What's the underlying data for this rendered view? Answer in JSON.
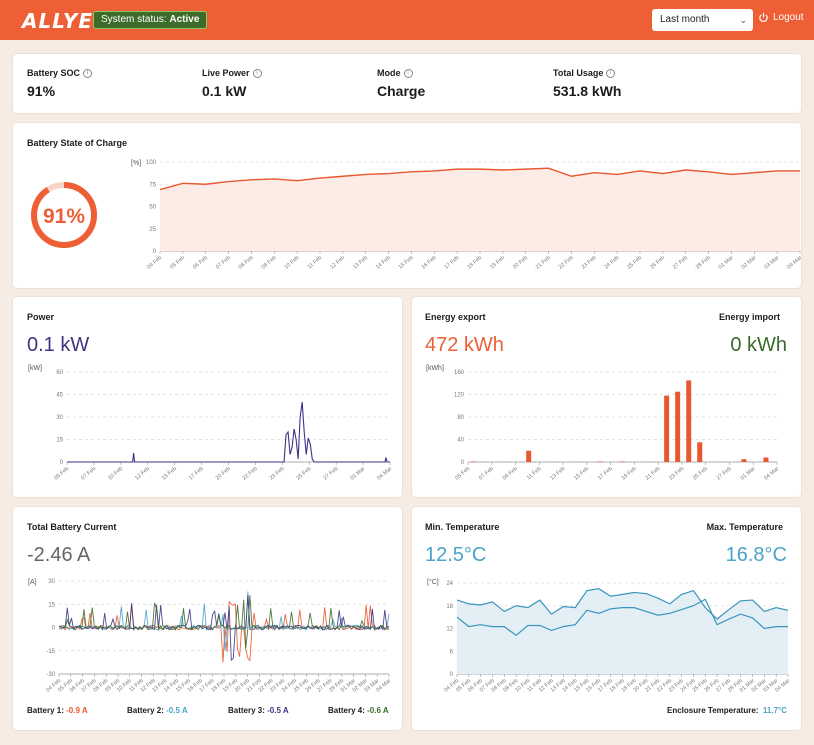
{
  "header": {
    "logo": "ALLYE",
    "status_label": "System status:",
    "status_value": "Active",
    "period": "Last month",
    "logout": "Logout"
  },
  "kpis": [
    {
      "label": "Battery SOC",
      "value": "91%"
    },
    {
      "label": "Live Power",
      "value": "0.1 kW"
    },
    {
      "label": "Mode",
      "value": "Charge"
    },
    {
      "label": "Total Usage",
      "value": "531.8 kWh"
    }
  ],
  "soc": {
    "title": "Battery State of Charge",
    "gauge_label": "91%",
    "gauge_value": 91,
    "unit": "[%]"
  },
  "power": {
    "title": "Power",
    "value": "0.1 kW",
    "unit": "[kW]"
  },
  "energy": {
    "export_title": "Energy export",
    "export_value": "472 kWh",
    "import_title": "Energy import",
    "import_value": "0 kWh",
    "unit": "[kWh]"
  },
  "current": {
    "title": "Total Battery Current",
    "value": "-2.46 A",
    "unit": "[A]",
    "batteries": [
      {
        "label": "Battery 1:",
        "value": "-0.9 A",
        "color": "#e8572e"
      },
      {
        "label": "Battery 2:",
        "value": "-0.5 A",
        "color": "#4aa3c9"
      },
      {
        "label": "Battery 3:",
        "value": "-0.5 A",
        "color": "#3b3486"
      },
      {
        "label": "Battery 4:",
        "value": "-0.6 A",
        "color": "#3d6b2a"
      }
    ]
  },
  "temperature": {
    "min_title": "Min. Temperature",
    "min_value": "12.5°C",
    "max_title": "Max. Temperature",
    "max_value": "16.8°C",
    "unit": "[°C]",
    "enclosure_label": "Enclosure Temperature:",
    "enclosure_value": "11.7°C"
  },
  "colors": {
    "accent": "#ee5f35",
    "power": "#3b3486",
    "import": "#3d6b2a",
    "temp": "#4aa3c9"
  },
  "chart_data": [
    {
      "type": "area",
      "title": "Battery State of Charge",
      "ylabel": "[%]",
      "ylim": [
        0,
        100
      ],
      "yticks": [
        0,
        25,
        50,
        75,
        100
      ],
      "grid": true,
      "x": [
        "04 Feb",
        "05 Feb",
        "06 Feb",
        "07 Feb",
        "08 Feb",
        "09 Feb",
        "10 Feb",
        "11 Feb",
        "12 Feb",
        "13 Feb",
        "14 Feb",
        "15 Feb",
        "16 Feb",
        "17 Feb",
        "18 Feb",
        "19 Feb",
        "20 Feb",
        "21 Feb",
        "22 Feb",
        "23 Feb",
        "24 Feb",
        "25 Feb",
        "26 Feb",
        "27 Feb",
        "28 Feb",
        "01 Mar",
        "02 Mar",
        "03 Mar",
        "04 Mar"
      ],
      "series": [
        {
          "values": [
            69,
            76,
            75,
            78,
            80,
            81,
            79,
            82,
            84,
            86,
            87,
            89,
            90,
            92,
            92,
            91,
            92,
            93,
            84,
            88,
            86,
            90,
            87,
            91,
            89,
            86,
            88,
            90,
            90
          ]
        }
      ]
    },
    {
      "type": "line",
      "title": "Power",
      "ylabel": "[kW]",
      "ylim": [
        0,
        60
      ],
      "yticks": [
        0,
        15,
        30,
        45,
        60
      ],
      "grid": true,
      "x": [
        "05 Feb",
        "07 Feb",
        "10 Feb",
        "12 Feb",
        "15 Feb",
        "17 Feb",
        "20 Feb",
        "22 Feb",
        "23 Feb",
        "25 Feb",
        "27 Feb",
        "01 Mar",
        "04 Mar"
      ],
      "series": [
        {
          "values": [
            [
              0,
              0
            ],
            [
              6.5,
              0
            ],
            [
              6.6,
              6
            ],
            [
              6.7,
              0
            ],
            [
              21.5,
              0
            ],
            [
              21.7,
              18
            ],
            [
              21.9,
              20
            ],
            [
              22.1,
              5
            ],
            [
              22.3,
              10
            ],
            [
              22.5,
              22
            ],
            [
              22.7,
              15
            ],
            [
              22.9,
              2
            ],
            [
              23.1,
              30
            ],
            [
              23.3,
              40
            ],
            [
              23.5,
              20
            ],
            [
              23.7,
              5
            ],
            [
              23.9,
              16
            ],
            [
              24.1,
              12
            ],
            [
              24.3,
              2
            ],
            [
              24.5,
              0
            ],
            [
              31.5,
              0
            ],
            [
              31.6,
              3
            ],
            [
              31.7,
              0
            ],
            [
              32,
              0
            ]
          ]
        }
      ]
    },
    {
      "type": "bar",
      "title": "Energy export",
      "ylabel": "[kWh]",
      "ylim": [
        0,
        160
      ],
      "yticks": [
        0,
        40,
        80,
        120,
        160
      ],
      "grid": true,
      "x": [
        "05 Feb",
        "07 Feb",
        "09 Feb",
        "11 Feb",
        "13 Feb",
        "15 Feb",
        "17 Feb",
        "19 Feb",
        "21 Feb",
        "23 Feb",
        "25 Feb",
        "27 Feb",
        "01 Mar",
        "04 Mar"
      ],
      "series": [
        {
          "name": "Energy export",
          "values": [
            [
              0.5,
              1
            ],
            [
              5.5,
              20
            ],
            [
              12,
              1
            ],
            [
              14,
              1
            ],
            [
              18,
              118
            ],
            [
              19,
              125
            ],
            [
              20,
              145
            ],
            [
              21,
              35
            ],
            [
              25,
              5
            ],
            [
              27,
              8
            ]
          ]
        }
      ]
    },
    {
      "type": "line",
      "title": "Total Battery Current",
      "ylabel": "[A]",
      "ylim": [
        -30,
        30
      ],
      "yticks": [
        -30,
        -15,
        0,
        15,
        30
      ],
      "grid": true,
      "x": [
        "04 Feb",
        "05 Feb",
        "06 Feb",
        "07 Feb",
        "08 Feb",
        "09 Feb",
        "10 Feb",
        "11 Feb",
        "12 Feb",
        "13 Feb",
        "14 Feb",
        "15 Feb",
        "16 Feb",
        "17 Feb",
        "18 Feb",
        "19 Feb",
        "20 Feb",
        "21 Feb",
        "22 Feb",
        "23 Feb",
        "24 Feb",
        "25 Feb",
        "26 Feb",
        "27 Feb",
        "28 Feb",
        "01 Mar",
        "02 Mar",
        "03 Mar",
        "04 Mar"
      ]
    },
    {
      "type": "area",
      "title": "Temperature",
      "ylabel": "[°C]",
      "ylim": [
        0,
        24
      ],
      "yticks": [
        0,
        6,
        12,
        18,
        24
      ],
      "grid": true,
      "x": [
        "04 Feb",
        "05 Feb",
        "06 Feb",
        "07 Feb",
        "08 Feb",
        "09 Feb",
        "10 Feb",
        "11 Feb",
        "12 Feb",
        "13 Feb",
        "14 Feb",
        "15 Feb",
        "16 Feb",
        "17 Feb",
        "18 Feb",
        "19 Feb",
        "20 Feb",
        "21 Feb",
        "22 Feb",
        "23 Feb",
        "24 Feb",
        "25 Feb",
        "26 Feb",
        "27 Feb",
        "28 Feb",
        "01 Mar",
        "02 Mar",
        "03 Mar",
        "04 Mar"
      ],
      "series": [
        {
          "name": "Max. Temperature",
          "values": [
            19.5,
            18.5,
            18.2,
            19,
            16.5,
            18,
            17.5,
            19.5,
            15.8,
            17.8,
            17.5,
            22,
            22.5,
            20.5,
            21,
            21.5,
            21.2,
            20,
            18.5,
            21,
            22,
            17.5,
            14.5,
            17,
            19.3,
            19.5,
            16.5,
            17.5,
            16.8
          ]
        },
        {
          "name": "Min. Temperature",
          "values": [
            15,
            12.5,
            13,
            12.5,
            12.5,
            10.2,
            12.8,
            12.8,
            11.5,
            12.5,
            13,
            16.8,
            16,
            17.2,
            17.5,
            17.5,
            16.5,
            15.5,
            16,
            17,
            18,
            19.7,
            13,
            14.5,
            15.8,
            14.8,
            12,
            12.5,
            12.5
          ]
        }
      ]
    }
  ]
}
